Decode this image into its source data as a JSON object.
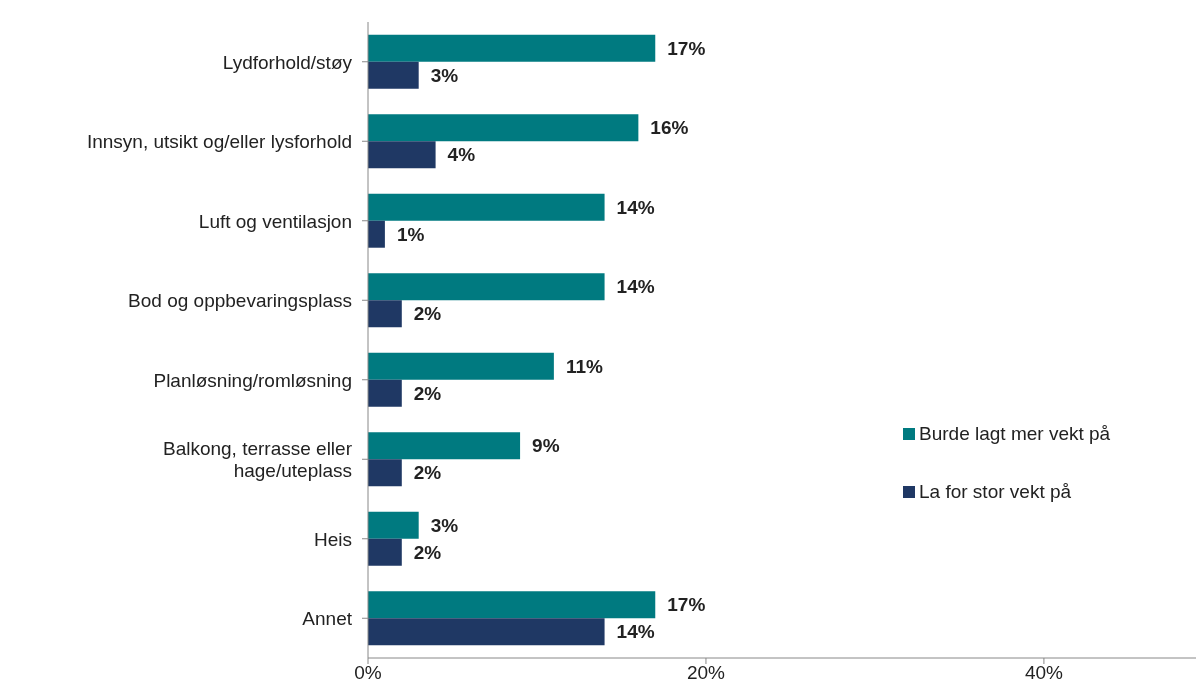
{
  "chart_data": {
    "type": "bar",
    "orientation": "horizontal",
    "categories": [
      "Lydforhold/støy",
      "Innsyn, utsikt og/eller lysforhold",
      "Luft og ventilasjon",
      "Bod og oppbevaringsplass",
      "Planløsning/romløsning",
      "Balkong, terrasse eller hage/uteplass",
      "Heis",
      "Annet"
    ],
    "series": [
      {
        "name": "Burde lagt mer vekt på",
        "color": "#007a80",
        "values": [
          17,
          16,
          14,
          14,
          11,
          9,
          3,
          17
        ],
        "value_labels": [
          "17%",
          "16%",
          "14%",
          "14%",
          "11%",
          "9%",
          "3%",
          "17%"
        ]
      },
      {
        "name": "La for stor vekt på",
        "color": "#1f3864",
        "values": [
          3,
          4,
          1,
          2,
          2,
          2,
          2,
          14
        ],
        "value_labels": [
          "3%",
          "4%",
          "1%",
          "2%",
          "2%",
          "2%",
          "2%",
          "14%"
        ]
      }
    ],
    "xlim": [
      0,
      49
    ],
    "xticks": [
      {
        "value": 0,
        "label": "0%"
      },
      {
        "value": 20,
        "label": "20%"
      },
      {
        "value": 40,
        "label": "40%"
      }
    ],
    "grid": false,
    "legend": "right"
  }
}
